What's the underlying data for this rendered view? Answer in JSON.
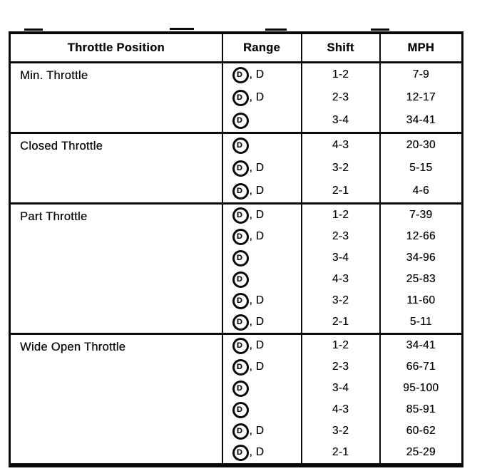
{
  "table": {
    "headers": {
      "throttle": "Throttle Position",
      "range": "Range",
      "shift": "Shift",
      "mph": "MPH"
    },
    "symbols": {
      "overdrive_letter": "D"
    },
    "sections": [
      {
        "label": "Min. Throttle",
        "rows": [
          {
            "range_circled_d": true,
            "range_suffix": ", D",
            "shift": "1-2",
            "mph": "7-9"
          },
          {
            "range_circled_d": true,
            "range_suffix": ", D",
            "shift": "2-3",
            "mph": "12-17"
          },
          {
            "range_circled_d": true,
            "range_suffix": "",
            "shift": "3-4",
            "mph": "34-41"
          }
        ]
      },
      {
        "label": "Closed Throttle",
        "rows": [
          {
            "range_circled_d": true,
            "range_suffix": "",
            "shift": "4-3",
            "mph": "20-30"
          },
          {
            "range_circled_d": true,
            "range_suffix": ", D",
            "shift": "3-2",
            "mph": "5-15"
          },
          {
            "range_circled_d": true,
            "range_suffix": ", D",
            "shift": "2-1",
            "mph": "4-6"
          }
        ]
      },
      {
        "label": "Part Throttle",
        "rows": [
          {
            "range_circled_d": true,
            "range_suffix": ", D",
            "shift": "1-2",
            "mph": "7-39"
          },
          {
            "range_circled_d": true,
            "range_suffix": ", D",
            "shift": "2-3",
            "mph": "12-66"
          },
          {
            "range_circled_d": true,
            "range_suffix": "",
            "shift": "3-4",
            "mph": "34-96"
          },
          {
            "range_circled_d": true,
            "range_suffix": "",
            "shift": "4-3",
            "mph": "25-83"
          },
          {
            "range_circled_d": true,
            "range_suffix": ", D",
            "shift": "3-2",
            "mph": "11-60"
          },
          {
            "range_circled_d": true,
            "range_suffix": ", D",
            "shift": "2-1",
            "mph": "5-11"
          }
        ]
      },
      {
        "label": "Wide Open Throttle",
        "rows": [
          {
            "range_circled_d": true,
            "range_suffix": ", D",
            "shift": "1-2",
            "mph": "34-41"
          },
          {
            "range_circled_d": true,
            "range_suffix": ", D",
            "shift": "2-3",
            "mph": "66-71"
          },
          {
            "range_circled_d": true,
            "range_suffix": "",
            "shift": "3-4",
            "mph": "95-100"
          },
          {
            "range_circled_d": true,
            "range_suffix": "",
            "shift": "4-3",
            "mph": "85-91"
          },
          {
            "range_circled_d": true,
            "range_suffix": ", D",
            "shift": "3-2",
            "mph": "60-62"
          },
          {
            "range_circled_d": true,
            "range_suffix": ", D",
            "shift": "2-1",
            "mph": "25-29"
          }
        ]
      }
    ]
  }
}
